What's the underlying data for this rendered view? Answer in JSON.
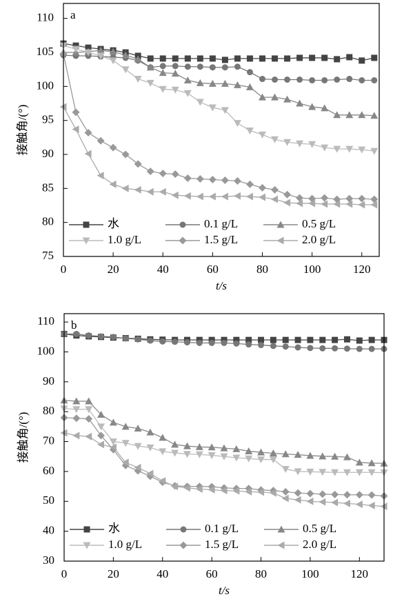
{
  "chart_data": [
    {
      "type": "line",
      "label": "a",
      "x_label": "t/s",
      "y_label": "接触角/(°)",
      "xlim": [
        0,
        127
      ],
      "xticks": [
        0,
        20,
        40,
        60,
        80,
        100,
        120
      ],
      "ylim": [
        75,
        112.2
      ],
      "yticks": [
        75,
        80,
        85,
        90,
        95,
        100,
        105,
        110
      ],
      "legend": "lower center",
      "x": [
        0,
        5,
        10,
        15,
        20,
        25,
        30,
        35,
        40,
        45,
        50,
        55,
        60,
        65,
        70,
        75,
        80,
        85,
        90,
        95,
        100,
        105,
        110,
        115,
        120,
        125
      ],
      "series": [
        {
          "name": "水",
          "color": "#444444",
          "marker": "square",
          "values": [
            106.3,
            106,
            105.7,
            105.5,
            105.3,
            105,
            104.5,
            104.1,
            104.1,
            104.1,
            104.1,
            104.1,
            104.1,
            103.9,
            104.1,
            104.1,
            104.1,
            104.1,
            104.1,
            104.2,
            104.2,
            104.2,
            104,
            104.3,
            103.8,
            104.2
          ]
        },
        {
          "name": "0.1 g/L",
          "color": "#777777",
          "marker": "circle",
          "values": [
            104.6,
            104.5,
            104.5,
            104.4,
            104.3,
            104.2,
            103.8,
            102.8,
            103,
            103,
            102.9,
            102.9,
            102.8,
            102.8,
            102.9,
            102.1,
            101.1,
            101,
            101,
            101,
            100.9,
            100.9,
            101,
            101.1,
            100.9,
            100.9
          ]
        },
        {
          "name": "0.5 g/L",
          "color": "#888888",
          "marker": "triangle-up",
          "values": [
            105,
            105,
            105.1,
            105.3,
            105.1,
            104.6,
            104,
            102.8,
            102,
            101.9,
            100.9,
            100.5,
            100.4,
            100.4,
            100.2,
            99.9,
            98.4,
            98.4,
            98.1,
            97.5,
            97,
            96.8,
            95.8,
            95.8,
            95.8,
            95.7
          ]
        },
        {
          "name": "1.0 g/L",
          "color": "#bbbbbb",
          "marker": "triangle-down",
          "values": [
            106,
            105.5,
            105,
            104.5,
            103.8,
            102.5,
            101.1,
            100.5,
            99.6,
            99.5,
            99,
            97.7,
            96.9,
            96.5,
            94.6,
            93.5,
            92.9,
            92.2,
            91.8,
            91.6,
            91.5,
            91,
            90.8,
            90.8,
            90.7,
            90.5
          ]
        },
        {
          "name": "1.5 g/L",
          "color": "#999999",
          "marker": "diamond",
          "values": [
            104.8,
            96.2,
            93.2,
            92,
            91,
            90,
            88.6,
            87.5,
            87.2,
            87.1,
            86.5,
            86.4,
            86.3,
            86.2,
            86.1,
            85.6,
            85.1,
            84.8,
            84.1,
            83.6,
            83.5,
            83.6,
            83.4,
            83.5,
            83.5,
            83.4
          ]
        },
        {
          "name": "2.0 g/L",
          "color": "#aaaaaa",
          "marker": "triangle-left",
          "values": [
            97,
            93.7,
            90.1,
            86.9,
            85.6,
            85,
            84.8,
            84.5,
            84.5,
            84,
            83.9,
            83.8,
            83.8,
            83.8,
            83.9,
            83.8,
            83.7,
            83.4,
            82.9,
            82.8,
            82.8,
            82.7,
            82.7,
            82.7,
            82.6,
            82.6
          ]
        }
      ]
    },
    {
      "type": "line",
      "label": "b",
      "x_label": "t/s",
      "y_label": "接触角/(°)",
      "xlim": [
        0,
        130
      ],
      "xticks": [
        0,
        20,
        40,
        60,
        80,
        100,
        120
      ],
      "ylim": [
        30,
        112.8
      ],
      "yticks": [
        30,
        40,
        50,
        60,
        70,
        80,
        90,
        100,
        110
      ],
      "legend": "lower center",
      "x": [
        0,
        5,
        10,
        15,
        20,
        25,
        30,
        35,
        40,
        45,
        50,
        55,
        60,
        65,
        70,
        75,
        80,
        85,
        90,
        95,
        100,
        105,
        110,
        115,
        120,
        125,
        130
      ],
      "series": [
        {
          "name": "水",
          "color": "#444444",
          "marker": "square",
          "values": [
            106,
            105.5,
            105.2,
            105,
            104.8,
            104.6,
            104.4,
            104.2,
            104.1,
            104,
            104,
            104,
            104,
            104,
            104,
            104,
            104,
            104,
            104,
            104,
            104,
            104,
            104,
            104.2,
            103.8,
            104,
            104
          ]
        },
        {
          "name": "0.1 g/L",
          "color": "#777777",
          "marker": "circle",
          "values": [
            106,
            106,
            105.5,
            105.2,
            105,
            104.5,
            104.2,
            103.8,
            103.5,
            103.4,
            103.2,
            103,
            103,
            103,
            102.8,
            102.5,
            102.3,
            102,
            101.8,
            101.5,
            101.3,
            101.2,
            101.2,
            101.1,
            101,
            101,
            101
          ]
        },
        {
          "name": "0.5 g/L",
          "color": "#888888",
          "marker": "triangle-up",
          "values": [
            83.8,
            83.5,
            83.5,
            79,
            76.4,
            75,
            74.4,
            73.1,
            71.3,
            69,
            68.5,
            68.2,
            68.1,
            67.8,
            67.5,
            66.8,
            66.4,
            66.1,
            65.8,
            65.6,
            65.3,
            65.1,
            65,
            64.8,
            63,
            62.8,
            62.7
          ]
        },
        {
          "name": "1.0 g/L",
          "color": "#bbbbbb",
          "marker": "triangle-down",
          "values": [
            81,
            80.8,
            80.8,
            75,
            70,
            69.5,
            68.5,
            68,
            66.7,
            66.2,
            65.8,
            65.7,
            65.4,
            65,
            64.6,
            64.3,
            64,
            64,
            60.8,
            60,
            59.9,
            59.8,
            59.7,
            59.7,
            59.7,
            59.7,
            59.6
          ]
        },
        {
          "name": "1.5 g/L",
          "color": "#999999",
          "marker": "diamond",
          "values": [
            78,
            77.8,
            77.6,
            72,
            67.3,
            62,
            60.2,
            58.4,
            56.4,
            55.2,
            55,
            55,
            54.9,
            54.5,
            54.3,
            54.3,
            53.8,
            53.6,
            53.2,
            52.8,
            52.6,
            52.4,
            52.3,
            52.2,
            52.2,
            52.1,
            51.8
          ]
        },
        {
          "name": "2.0 g/L",
          "color": "#aaaaaa",
          "marker": "triangle-left",
          "values": [
            72.9,
            72,
            71.7,
            69,
            68.1,
            63,
            61.3,
            59.3,
            56.8,
            55,
            54.5,
            54.1,
            53.9,
            53.6,
            53.5,
            53.2,
            53.1,
            52.8,
            51,
            50.5,
            50,
            49.8,
            49.6,
            49.3,
            49,
            48.6,
            48.3
          ]
        }
      ]
    }
  ]
}
